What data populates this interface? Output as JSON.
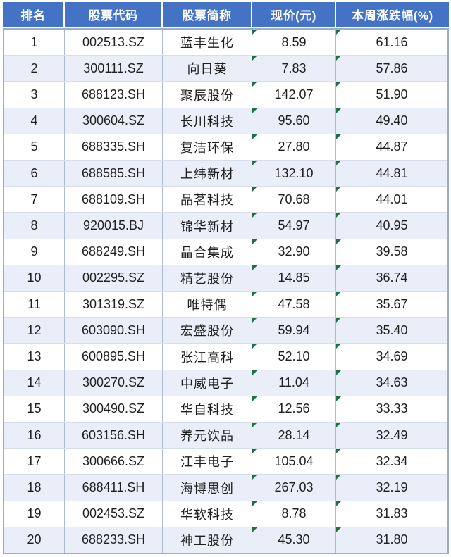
{
  "table": {
    "columns": [
      {
        "key": "rank",
        "label": "排名"
      },
      {
        "key": "code",
        "label": "股票代码"
      },
      {
        "key": "name",
        "label": "股票简称"
      },
      {
        "key": "price",
        "label": "现价(元)"
      },
      {
        "key": "change",
        "label": "本周涨跌幅(%)"
      }
    ],
    "flagged_columns": [
      "price",
      "change"
    ],
    "rows": [
      {
        "rank": "1",
        "code": "002513.SZ",
        "name": "蓝丰生化",
        "price": "8.59",
        "change": "61.16"
      },
      {
        "rank": "2",
        "code": "300111.SZ",
        "name": "向日葵",
        "price": "7.83",
        "change": "57.86"
      },
      {
        "rank": "3",
        "code": "688123.SH",
        "name": "聚辰股份",
        "price": "142.07",
        "change": "51.90"
      },
      {
        "rank": "4",
        "code": "300604.SZ",
        "name": "长川科技",
        "price": "95.60",
        "change": "49.40"
      },
      {
        "rank": "5",
        "code": "688335.SH",
        "name": "复洁环保",
        "price": "27.80",
        "change": "44.87"
      },
      {
        "rank": "6",
        "code": "688585.SH",
        "name": "上纬新材",
        "price": "132.10",
        "change": "44.81"
      },
      {
        "rank": "7",
        "code": "688109.SH",
        "name": "品茗科技",
        "price": "70.68",
        "change": "44.01"
      },
      {
        "rank": "8",
        "code": "920015.BJ",
        "name": "锦华新材",
        "price": "54.97",
        "change": "40.95"
      },
      {
        "rank": "9",
        "code": "688249.SH",
        "name": "晶合集成",
        "price": "32.90",
        "change": "39.58"
      },
      {
        "rank": "10",
        "code": "002295.SZ",
        "name": "精艺股份",
        "price": "14.85",
        "change": "36.74"
      },
      {
        "rank": "11",
        "code": "301319.SZ",
        "name": "唯特偶",
        "price": "47.58",
        "change": "35.67"
      },
      {
        "rank": "12",
        "code": "603090.SH",
        "name": "宏盛股份",
        "price": "59.94",
        "change": "35.40"
      },
      {
        "rank": "13",
        "code": "600895.SH",
        "name": "张江高科",
        "price": "52.10",
        "change": "34.69"
      },
      {
        "rank": "14",
        "code": "300270.SZ",
        "name": "中威电子",
        "price": "11.04",
        "change": "34.63"
      },
      {
        "rank": "15",
        "code": "300490.SZ",
        "name": "华自科技",
        "price": "12.56",
        "change": "33.33"
      },
      {
        "rank": "16",
        "code": "603156.SH",
        "name": "养元饮品",
        "price": "28.14",
        "change": "32.49"
      },
      {
        "rank": "17",
        "code": "300666.SZ",
        "name": "江丰电子",
        "price": "105.04",
        "change": "32.34"
      },
      {
        "rank": "18",
        "code": "688411.SH",
        "name": "海博思创",
        "price": "267.03",
        "change": "32.19"
      },
      {
        "rank": "19",
        "code": "002453.SZ",
        "name": "华软科技",
        "price": "8.78",
        "change": "31.83"
      },
      {
        "rank": "20",
        "code": "688233.SH",
        "name": "神工股份",
        "price": "45.30",
        "change": "31.80"
      }
    ]
  },
  "colors": {
    "header_bg": "#4472C4",
    "header_text": "#ffffff",
    "stripe_row_bg": "#E9EEF8",
    "outer_border": "#9cadc6",
    "column_border": "#aebbd2",
    "row_border": "#d6deeb",
    "flag_green": "#1E7145",
    "body_text": "#1f1f1f"
  }
}
